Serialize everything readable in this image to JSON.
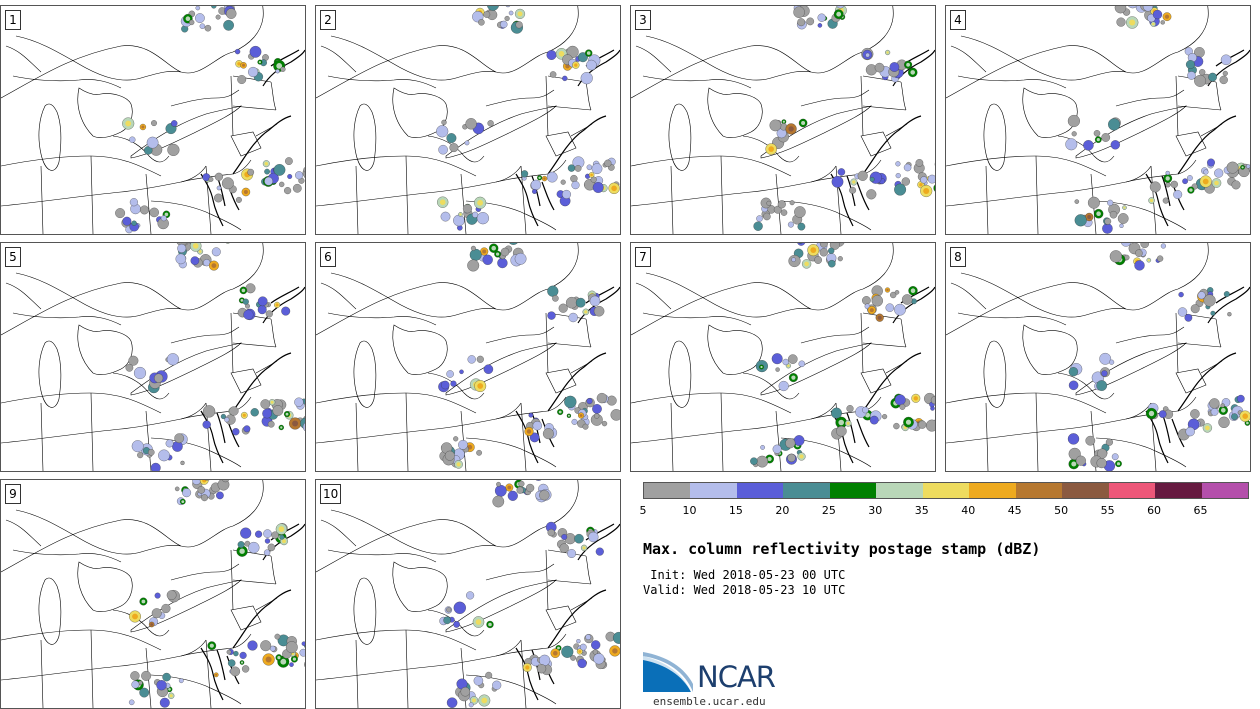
{
  "title": "Max. column reflectivity postage stamp (dBZ)",
  "init_label": " Init: Wed 2018-05-23 00 UTC",
  "valid_label": "Valid: Wed 2018-05-23 10 UTC",
  "members": [
    "1",
    "2",
    "3",
    "4",
    "5",
    "6",
    "7",
    "8",
    "9",
    "10"
  ],
  "colorbar": {
    "colors": [
      "#a0a0a0",
      "#b4bdeb",
      "#5b5ed8",
      "#4a8d94",
      "#008000",
      "#b9d7b8",
      "#eedc5f",
      "#eeaa1f",
      "#b67830",
      "#8b5a40",
      "#ed5779",
      "#661a40",
      "#b44fab"
    ],
    "tick_labels": [
      "5",
      "10",
      "15",
      "20",
      "25",
      "30",
      "35",
      "40",
      "45",
      "50",
      "55",
      "60",
      "65"
    ]
  },
  "logo": {
    "text": "NCAR",
    "url": "ensemble.ucar.edu"
  }
}
